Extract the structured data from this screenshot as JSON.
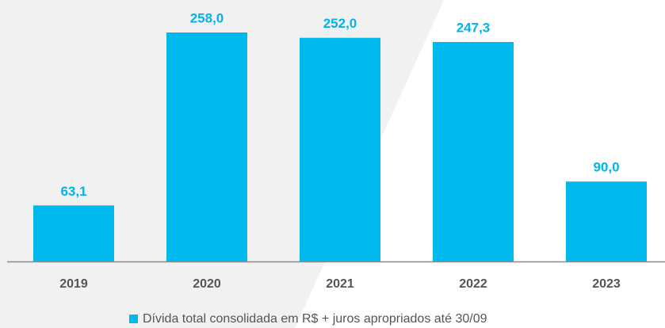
{
  "chart_data": {
    "type": "bar",
    "categories": [
      "2019",
      "2020",
      "2021",
      "2022",
      "2023"
    ],
    "series": [
      {
        "name": "Dívida total consolidada em R$ + juros apropriados até 30/09",
        "color": "#00b9ec",
        "values": [
          63.1,
          258.0,
          252.0,
          247.3,
          90.0
        ],
        "value_labels": [
          "63,1",
          "258,0",
          "252,0",
          "247,3",
          "90,0"
        ]
      }
    ]
  }
}
